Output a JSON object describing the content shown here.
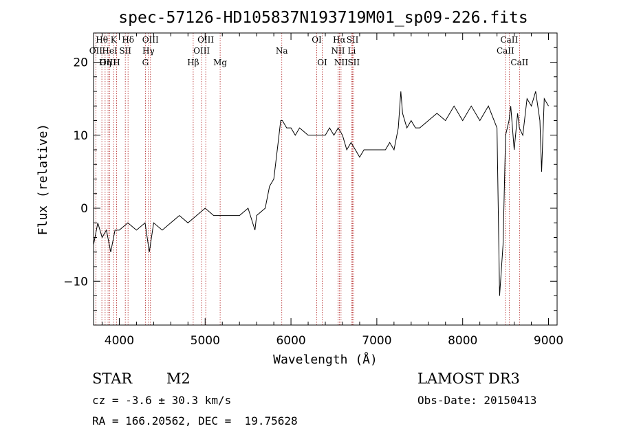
{
  "chart_data": {
    "type": "line",
    "title": "spec-57126-HD105837N193719M01_sp09-226.fits",
    "xlabel": "Wavelength (Å)",
    "ylabel": "Flux (relative)",
    "xlim": [
      3700,
      9100
    ],
    "ylim": [
      -16,
      24
    ],
    "x_ticks": [
      4000,
      5000,
      6000,
      7000,
      8000,
      9000
    ],
    "y_ticks": [
      -10,
      0,
      10,
      20
    ],
    "grid": false,
    "series": [
      {
        "name": "flux",
        "x": [
          3700,
          3750,
          3800,
          3850,
          3900,
          3950,
          4000,
          4100,
          4200,
          4300,
          4350,
          4400,
          4500,
          4600,
          4700,
          4800,
          4900,
          5000,
          5100,
          5200,
          5300,
          5400,
          5500,
          5580,
          5600,
          5700,
          5750,
          5800,
          5850,
          5880,
          5900,
          5950,
          6000,
          6050,
          6100,
          6200,
          6300,
          6400,
          6450,
          6500,
          6550,
          6600,
          6650,
          6700,
          6750,
          6800,
          6850,
          6900,
          7000,
          7100,
          7150,
          7200,
          7250,
          7280,
          7300,
          7350,
          7400,
          7450,
          7500,
          7600,
          7700,
          7800,
          7900,
          8000,
          8100,
          8200,
          8300,
          8400,
          8430,
          8470,
          8500,
          8540,
          8560,
          8600,
          8640,
          8660,
          8700,
          8750,
          8800,
          8850,
          8900,
          8920,
          8950,
          9000
        ],
        "values": [
          -5,
          -2,
          -4,
          -3,
          -6,
          -3,
          -3,
          -2,
          -3,
          -2,
          -6,
          -2,
          -3,
          -2,
          -1,
          -2,
          -1,
          0,
          -1,
          -1,
          -1,
          -1,
          0,
          -3,
          -1,
          0,
          3,
          4,
          9,
          12,
          12,
          11,
          11,
          10,
          11,
          10,
          10,
          10,
          11,
          10,
          11,
          10,
          8,
          9,
          8,
          7,
          8,
          8,
          8,
          8,
          9,
          8,
          11,
          16,
          13,
          11,
          12,
          11,
          11,
          12,
          13,
          12,
          14,
          12,
          14,
          12,
          14,
          11,
          -12,
          -5,
          10,
          12,
          14,
          8,
          13,
          11,
          10,
          15,
          14,
          16,
          12,
          5,
          15,
          14
        ]
      }
    ],
    "spectral_lines": [
      {
        "label": "Hθ",
        "wavelength": 3797,
        "row": 1
      },
      {
        "label": "OII",
        "wavelength": 3727,
        "row": 2
      },
      {
        "label": "OIII",
        "wavelength": 3869,
        "row": 3
      },
      {
        "label": "K",
        "wavelength": 3934,
        "row": 1
      },
      {
        "label": "HeI",
        "wavelength": 3889,
        "row": 2
      },
      {
        "label": "Hη",
        "wavelength": 3835,
        "row": 3
      },
      {
        "label": "SII",
        "wavelength": 4070,
        "row": 2
      },
      {
        "label": "H",
        "wavelength": 3968,
        "row": 3
      },
      {
        "label": "Hδ",
        "wavelength": 4102,
        "row": 1
      },
      {
        "label": "OIII",
        "wavelength": 4363,
        "row": 1
      },
      {
        "label": "Hγ",
        "wavelength": 4340,
        "row": 2
      },
      {
        "label": "G",
        "wavelength": 4304,
        "row": 3
      },
      {
        "label": "OIII",
        "wavelength": 5007,
        "row": 1
      },
      {
        "label": "OIII",
        "wavelength": 4959,
        "row": 2
      },
      {
        "label": "Hβ",
        "wavelength": 4861,
        "row": 3
      },
      {
        "label": "Mg",
        "wavelength": 5175,
        "row": 3
      },
      {
        "label": "Na",
        "wavelength": 5893,
        "row": 2
      },
      {
        "label": "OI",
        "wavelength": 6300,
        "row": 1
      },
      {
        "label": "OI",
        "wavelength": 6364,
        "row": 3
      },
      {
        "label": "Hα",
        "wavelength": 6563,
        "row": 1
      },
      {
        "label": "SII",
        "wavelength": 6717,
        "row": 1
      },
      {
        "label": "NII",
        "wavelength": 6548,
        "row": 2
      },
      {
        "label": "Li",
        "wavelength": 6708,
        "row": 2
      },
      {
        "label": "NII",
        "wavelength": 6583,
        "row": 3
      },
      {
        "label": "SII",
        "wavelength": 6731,
        "row": 3
      },
      {
        "label": "CaII",
        "wavelength": 8542,
        "row": 1
      },
      {
        "label": "CaII",
        "wavelength": 8498,
        "row": 2
      },
      {
        "label": "CaII",
        "wavelength": 8662,
        "row": 3
      }
    ]
  },
  "footer": {
    "object_class": "STAR",
    "subclass": "M2",
    "survey": "LAMOST DR3",
    "cz": "cz = -3.6 ± 30.3 km/s",
    "obs_date": "Obs-Date: 20150413",
    "coords": "RA = 166.20562, DEC =  19.75628"
  }
}
